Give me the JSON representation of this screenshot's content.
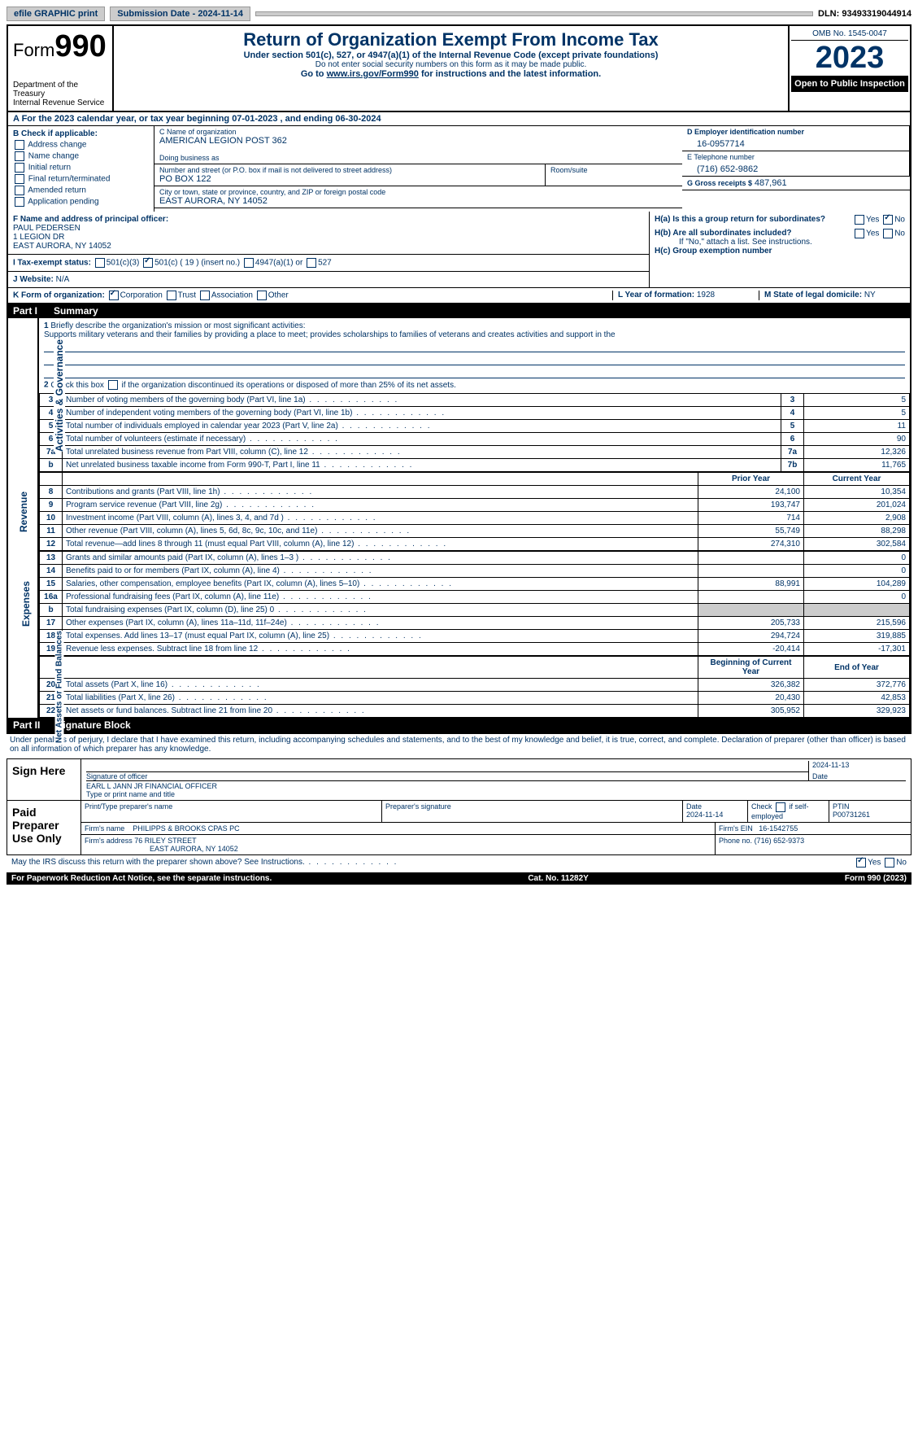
{
  "topbar": {
    "efile": "efile GRAPHIC print",
    "submission": "Submission Date - 2024-11-14",
    "dln": "DLN: 93493319044914"
  },
  "header": {
    "form_prefix": "Form",
    "form_number": "990",
    "title": "Return of Organization Exempt From Income Tax",
    "subtitle": "Under section 501(c), 527, or 4947(a)(1) of the Internal Revenue Code (except private foundations)",
    "note1": "Do not enter social security numbers on this form as it may be made public.",
    "note2_prefix": "Go to ",
    "note2_link": "www.irs.gov/Form990",
    "note2_suffix": " for instructions and the latest information.",
    "dept": "Department of the Treasury\nInternal Revenue Service",
    "omb": "OMB No. 1545-0047",
    "year": "2023",
    "open": "Open to Public Inspection"
  },
  "A": {
    "text": "A For the 2023 calendar year, or tax year beginning 07-01-2023   , and ending 06-30-2024"
  },
  "B": {
    "label": "B Check if applicable:",
    "items": [
      "Address change",
      "Name change",
      "Initial return",
      "Final return/terminated",
      "Amended return",
      "Application pending"
    ]
  },
  "C": {
    "name_lbl": "C Name of organization",
    "name": "AMERICAN LEGION POST 362",
    "dba_lbl": "Doing business as",
    "dba": "",
    "street_lbl": "Number and street (or P.O. box if mail is not delivered to street address)",
    "street": "PO BOX 122",
    "room_lbl": "Room/suite",
    "city_lbl": "City or town, state or province, country, and ZIP or foreign postal code",
    "city": "EAST AURORA, NY  14052"
  },
  "D": {
    "lbl": "D Employer identification number",
    "val": "16-0957714"
  },
  "E": {
    "lbl": "E Telephone number",
    "val": "(716) 652-9862"
  },
  "G": {
    "lbl": "G Gross receipts $",
    "val": "487,961"
  },
  "F": {
    "lbl": "F  Name and address of principal officer:",
    "name": "PAUL PEDERSEN",
    "addr1": "1 LEGION DR",
    "addr2": "EAST AURORA, NY  14052"
  },
  "H": {
    "a": "H(a)  Is this a group return for subordinates?",
    "b": "H(b)  Are all subordinates included?",
    "note": "If \"No,\" attach a list. See instructions.",
    "c": "H(c)  Group exemption number",
    "yes": "Yes",
    "no": "No"
  },
  "I": {
    "lbl": "I    Tax-exempt status:",
    "opts": [
      "501(c)(3)",
      "501(c) ( 19 ) (insert no.)",
      "4947(a)(1) or",
      "527"
    ]
  },
  "J": {
    "lbl": "J   Website:",
    "val": "N/A"
  },
  "K": {
    "lbl": "K Form of organization:",
    "opts": [
      "Corporation",
      "Trust",
      "Association",
      "Other"
    ]
  },
  "L": {
    "lbl": "L Year of formation:",
    "val": "1928"
  },
  "M": {
    "lbl": "M State of legal domicile:",
    "val": "NY"
  },
  "part1": {
    "label": "Part I",
    "title": "Summary"
  },
  "gov": {
    "side": "Activities & Governance",
    "l1": "Briefly describe the organization's mission or most significant activities:",
    "mission": "Supports military veterans and their families by providing a place to meet; provides scholarships to families of veterans and creates activities and support in the",
    "l2": "Check this box       if the organization discontinued its operations or disposed of more than 25% of its net assets.",
    "rows": [
      {
        "n": "3",
        "t": "Number of voting members of the governing body (Part VI, line 1a)",
        "rn": "3",
        "v": "5"
      },
      {
        "n": "4",
        "t": "Number of independent voting members of the governing body (Part VI, line 1b)",
        "rn": "4",
        "v": "5"
      },
      {
        "n": "5",
        "t": "Total number of individuals employed in calendar year 2023 (Part V, line 2a)",
        "rn": "5",
        "v": "11"
      },
      {
        "n": "6",
        "t": "Total number of volunteers (estimate if necessary)",
        "rn": "6",
        "v": "90"
      },
      {
        "n": "7a",
        "t": "Total unrelated business revenue from Part VIII, column (C), line 12",
        "rn": "7a",
        "v": "12,326"
      },
      {
        "n": "b",
        "t": "Net unrelated business taxable income from Form 990-T, Part I, line 11",
        "rn": "7b",
        "v": "11,765"
      }
    ]
  },
  "rev": {
    "side": "Revenue",
    "hdr": {
      "py": "Prior Year",
      "cy": "Current Year"
    },
    "rows": [
      {
        "n": "8",
        "t": "Contributions and grants (Part VIII, line 1h)",
        "py": "24,100",
        "cy": "10,354"
      },
      {
        "n": "9",
        "t": "Program service revenue (Part VIII, line 2g)",
        "py": "193,747",
        "cy": "201,024"
      },
      {
        "n": "10",
        "t": "Investment income (Part VIII, column (A), lines 3, 4, and 7d )",
        "py": "714",
        "cy": "2,908"
      },
      {
        "n": "11",
        "t": "Other revenue (Part VIII, column (A), lines 5, 6d, 8c, 9c, 10c, and 11e)",
        "py": "55,749",
        "cy": "88,298"
      },
      {
        "n": "12",
        "t": "Total revenue—add lines 8 through 11 (must equal Part VIII, column (A), line 12)",
        "py": "274,310",
        "cy": "302,584"
      }
    ]
  },
  "exp": {
    "side": "Expenses",
    "rows": [
      {
        "n": "13",
        "t": "Grants and similar amounts paid (Part IX, column (A), lines 1–3 )",
        "py": "",
        "cy": "0"
      },
      {
        "n": "14",
        "t": "Benefits paid to or for members (Part IX, column (A), line 4)",
        "py": "",
        "cy": "0"
      },
      {
        "n": "15",
        "t": "Salaries, other compensation, employee benefits (Part IX, column (A), lines 5–10)",
        "py": "88,991",
        "cy": "104,289"
      },
      {
        "n": "16a",
        "t": "Professional fundraising fees (Part IX, column (A), line 11e)",
        "py": "",
        "cy": "0"
      },
      {
        "n": "b",
        "t": "Total fundraising expenses (Part IX, column (D), line 25) 0",
        "py": "gray",
        "cy": "gray"
      },
      {
        "n": "17",
        "t": "Other expenses (Part IX, column (A), lines 11a–11d, 11f–24e)",
        "py": "205,733",
        "cy": "215,596"
      },
      {
        "n": "18",
        "t": "Total expenses. Add lines 13–17 (must equal Part IX, column (A), line 25)",
        "py": "294,724",
        "cy": "319,885"
      },
      {
        "n": "19",
        "t": "Revenue less expenses. Subtract line 18 from line 12",
        "py": "-20,414",
        "cy": "-17,301"
      }
    ]
  },
  "net": {
    "side": "Net Assets or Fund Balances",
    "hdr": {
      "py": "Beginning of Current Year",
      "cy": "End of Year"
    },
    "rows": [
      {
        "n": "20",
        "t": "Total assets (Part X, line 16)",
        "py": "326,382",
        "cy": "372,776"
      },
      {
        "n": "21",
        "t": "Total liabilities (Part X, line 26)",
        "py": "20,430",
        "cy": "42,853"
      },
      {
        "n": "22",
        "t": "Net assets or fund balances. Subtract line 21 from line 20",
        "py": "305,952",
        "cy": "329,923"
      }
    ]
  },
  "part2": {
    "label": "Part II",
    "title": "Signature Block"
  },
  "decl": "Under penalties of perjury, I declare that I have examined this return, including accompanying schedules and statements, and to the best of my knowledge and belief, it is true, correct, and complete. Declaration of preparer (other than officer) is based on all information of which preparer has any knowledge.",
  "sign": {
    "here": "Sign Here",
    "date1": "2024-11-13",
    "sig_lbl": "Signature of officer",
    "date_lbl": "Date",
    "officer": "EARL L JANN JR FINANCIAL OFFICER",
    "type_lbl": "Type or print name and title",
    "paid": "Paid Preparer Use Only",
    "p_name_lbl": "Print/Type preparer's name",
    "p_sig_lbl": "Preparer's signature",
    "p_date_lbl": "Date",
    "p_date": "2024-11-14",
    "check_lbl": "Check        if self-employed",
    "ptin_lbl": "PTIN",
    "ptin": "P00731261",
    "firm_name_lbl": "Firm's name",
    "firm_name": "PHILIPPS & BROOKS CPAS PC",
    "firm_ein_lbl": "Firm's EIN",
    "firm_ein": "16-1542755",
    "firm_addr_lbl": "Firm's address",
    "firm_addr": "76 RILEY STREET",
    "firm_city": "EAST AURORA, NY  14052",
    "phone_lbl": "Phone no.",
    "phone": "(716) 652-9373"
  },
  "discuss": "May the IRS discuss this return with the preparer shown above? See Instructions.",
  "footer": {
    "l": "For Paperwork Reduction Act Notice, see the separate instructions.",
    "c": "Cat. No. 11282Y",
    "r": "Form 990 (2023)"
  }
}
